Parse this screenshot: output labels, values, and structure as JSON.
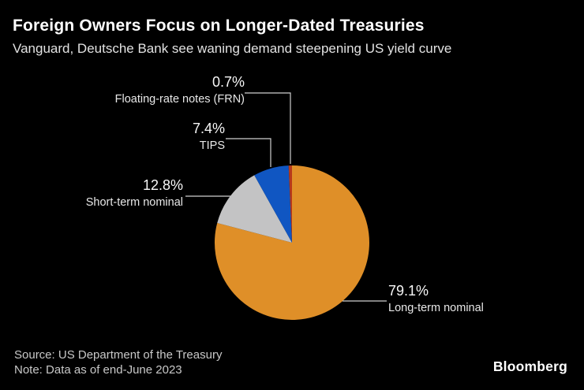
{
  "header": {
    "title": "Foreign Owners Focus on Longer-Dated Treasuries",
    "subtitle": "Vanguard, Deutsche Bank see waning demand steepening US yield curve"
  },
  "chart_data": {
    "type": "pie",
    "title": "Foreign Owners Focus on Longer-Dated Treasuries",
    "subtitle": "Vanguard, Deutsche Bank see waning demand steepening US yield curve",
    "unit": "%",
    "direction": "clockwise",
    "start_angle_deg": 0,
    "legend_position": "callout-labels",
    "slices": [
      {
        "label": "Long-term nominal",
        "value": 79.1,
        "display": "79.1%",
        "color": "#DF8F28"
      },
      {
        "label": "Short-term nominal",
        "value": 12.8,
        "display": "12.8%",
        "color": "#C3C3C4"
      },
      {
        "label": "TIPS",
        "value": 7.4,
        "display": "7.4%",
        "color": "#1056C2"
      },
      {
        "label": "Floating-rate notes (FRN)",
        "value": 0.7,
        "display": "0.7%",
        "color": "#B73A1B"
      }
    ]
  },
  "footer": {
    "source": "Source: US Department of the Treasury",
    "note": "Note: Data as of end-June 2023",
    "brand": "Bloomberg"
  }
}
